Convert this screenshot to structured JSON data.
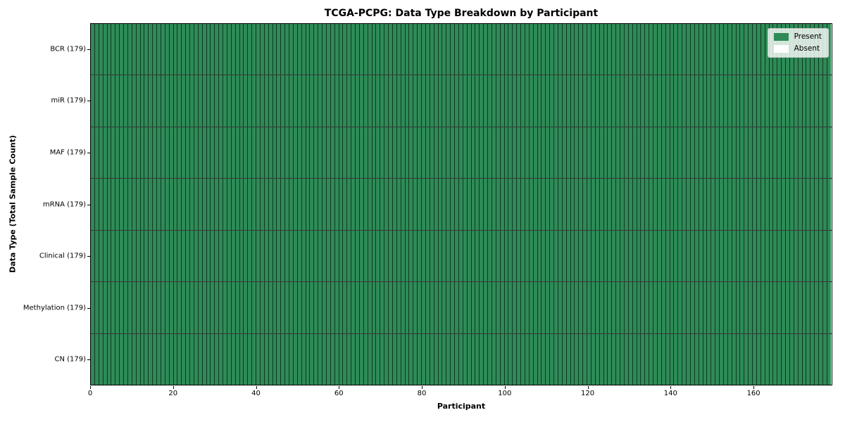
{
  "chart_data": {
    "type": "heatmap",
    "title": "TCGA-PCPG: Data Type Breakdown by Participant",
    "xlabel": "Participant",
    "ylabel": "Data Type (Total Sample Count)",
    "n_participants": 179,
    "xlim": [
      0,
      179
    ],
    "x_ticks": [
      0,
      20,
      40,
      60,
      80,
      100,
      120,
      140,
      160
    ],
    "rows": [
      {
        "label": "BCR (179)",
        "name": "BCR",
        "total": 179,
        "present": 179,
        "absent": 0
      },
      {
        "label": "miR (179)",
        "name": "miR",
        "total": 179,
        "present": 179,
        "absent": 0
      },
      {
        "label": "MAF (179)",
        "name": "MAF",
        "total": 179,
        "present": 179,
        "absent": 0
      },
      {
        "label": "mRNA (179)",
        "name": "mRNA",
        "total": 179,
        "present": 179,
        "absent": 0
      },
      {
        "label": "Clinical (179)",
        "name": "Clinical",
        "total": 179,
        "present": 179,
        "absent": 0
      },
      {
        "label": "Methylation (179)",
        "name": "Methylation",
        "total": 179,
        "present": 179,
        "absent": 0
      },
      {
        "label": "CN (179)",
        "name": "CN",
        "total": 179,
        "present": 179,
        "absent": 0
      }
    ],
    "all_present": true,
    "legend": {
      "position": "upper right",
      "entries": [
        {
          "label": "Present",
          "color": "#2e8b57"
        },
        {
          "label": "Absent",
          "color": "#ffffff"
        }
      ]
    },
    "colors": {
      "present": "#2e8b57",
      "absent": "#ffffff",
      "cell_edge": "rgba(0,0,0,0.60)",
      "row_divider": "rgba(0,0,0,0.78)",
      "spine": "#000000"
    },
    "grid": "cell borders visible",
    "legend_entries_text": [
      "Present",
      "Absent"
    ]
  }
}
